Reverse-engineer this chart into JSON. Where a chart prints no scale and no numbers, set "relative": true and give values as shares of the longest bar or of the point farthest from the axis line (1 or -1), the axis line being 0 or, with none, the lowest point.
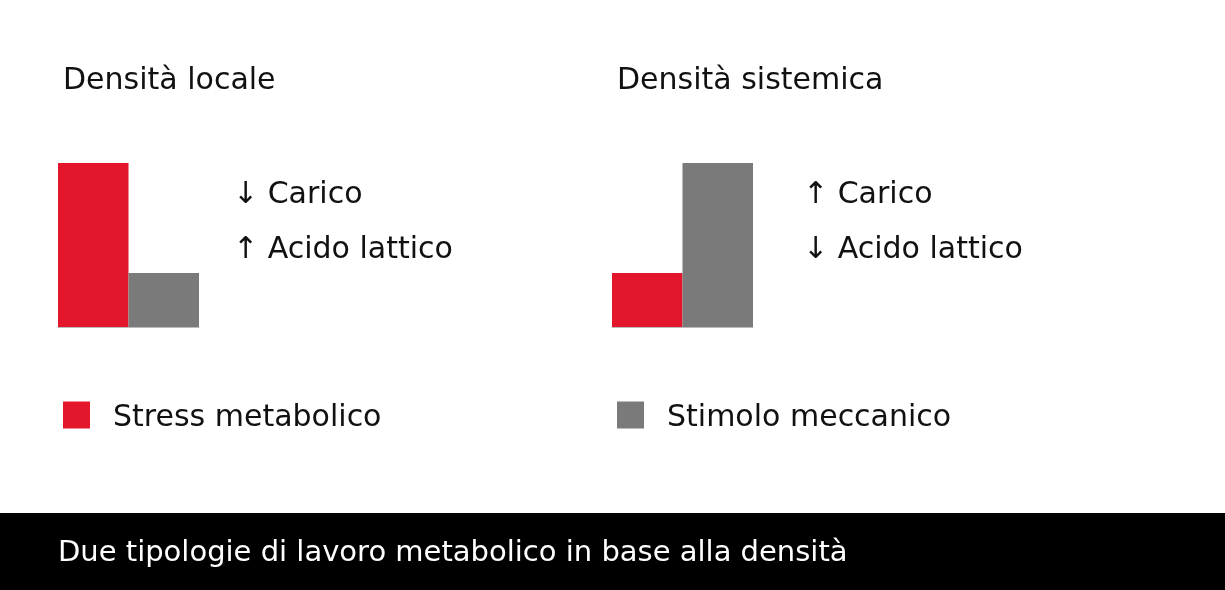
{
  "chart_data": [
    {
      "type": "bar",
      "title": "Densità locale",
      "categories": [
        null
      ],
      "relative": true,
      "legend": "bottom",
      "annotations": [
        "↓ Carico",
        "↑ Acido lattico"
      ],
      "series": [
        {
          "name": "Stress metabolico",
          "color": "#e3162b",
          "values": [
            1
          ]
        },
        {
          "color": "#7a7a7a",
          "values": [
            0.33
          ]
        }
      ]
    },
    {
      "type": "bar",
      "title": "Densità sistemica",
      "categories": [
        null
      ],
      "relative": true,
      "legend": "bottom",
      "annotations": [
        "↑ Carico",
        "↓ Acido lattico",
        "Due tipologie di lavoro metabolico in base alla densità"
      ],
      "series": [
        {
          "color": "#e3162b",
          "values": [
            0.33
          ]
        },
        {
          "name": "Stimolo meccanico",
          "color": "#7a7a7a",
          "values": [
            1
          ]
        }
      ]
    }
  ]
}
